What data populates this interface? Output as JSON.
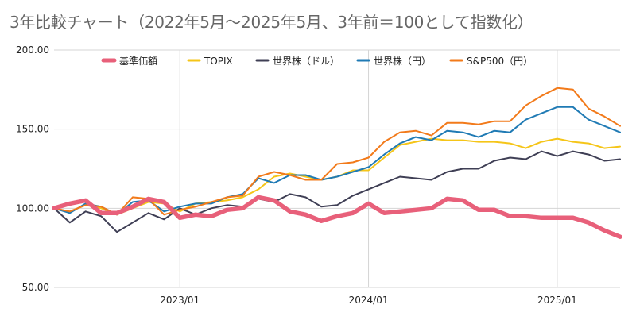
{
  "chart_data": {
    "type": "line",
    "title": "3年比較チャート（2022年5月～2025年5月、3年前＝100として指数化）",
    "ylim": [
      50,
      200
    ],
    "yticks": [
      "50.00",
      "100.00",
      "150.00",
      "200.00"
    ],
    "xticks": [
      "2023/01",
      "2024/01",
      "2025/01"
    ],
    "x": [
      "2022/05",
      "2022/06",
      "2022/07",
      "2022/08",
      "2022/09",
      "2022/10",
      "2022/11",
      "2022/12",
      "2023/01",
      "2023/02",
      "2023/03",
      "2023/04",
      "2023/05",
      "2023/06",
      "2023/07",
      "2023/08",
      "2023/09",
      "2023/10",
      "2023/11",
      "2023/12",
      "2024/01",
      "2024/02",
      "2024/03",
      "2024/04",
      "2024/05",
      "2024/06",
      "2024/07",
      "2024/08",
      "2024/09",
      "2024/10",
      "2024/11",
      "2024/12",
      "2025/01",
      "2025/02",
      "2025/03",
      "2025/04",
      "2025/05"
    ],
    "grid": true,
    "legend_position": "top",
    "series": [
      {
        "name": "基準価額",
        "color": "#e8607a",
        "values": [
          100,
          103,
          105,
          97,
          97,
          101,
          106,
          104,
          94,
          96,
          95,
          99,
          100,
          107,
          105,
          98,
          96,
          92,
          95,
          97,
          103,
          97,
          98,
          99,
          100,
          106,
          105,
          99,
          99,
          95,
          95,
          94,
          94,
          94,
          91,
          86,
          82
        ]
      },
      {
        "name": "TOPIX",
        "color": "#f5c518",
        "values": [
          100,
          98,
          102,
          100,
          96,
          100,
          104,
          103,
          98,
          103,
          104,
          105,
          107,
          112,
          120,
          122,
          120,
          118,
          120,
          124,
          124,
          132,
          140,
          142,
          144,
          143,
          143,
          142,
          142,
          141,
          138,
          142,
          144,
          142,
          141,
          138,
          139
        ]
      },
      {
        "name": "世界株（ドル）",
        "color": "#3f3f55",
        "values": [
          100,
          91,
          98,
          95,
          85,
          91,
          97,
          93,
          100,
          96,
          100,
          102,
          101,
          106,
          104,
          109,
          107,
          101,
          102,
          108,
          112,
          116,
          120,
          119,
          118,
          123,
          125,
          125,
          130,
          132,
          131,
          136,
          133,
          136,
          134,
          130,
          131
        ]
      },
      {
        "name": "世界株（円）",
        "color": "#1f7ab4",
        "values": [
          100,
          97,
          103,
          101,
          96,
          104,
          105,
          98,
          101,
          103,
          103,
          107,
          109,
          119,
          116,
          121,
          121,
          118,
          120,
          123,
          126,
          134,
          141,
          145,
          143,
          149,
          148,
          145,
          149,
          148,
          156,
          160,
          164,
          164,
          156,
          152,
          148
        ]
      },
      {
        "name": "S&P500（円）",
        "color": "#f27a1a",
        "values": [
          100,
          98,
          102,
          101,
          96,
          107,
          106,
          96,
          99,
          101,
          104,
          107,
          108,
          120,
          123,
          121,
          118,
          118,
          128,
          129,
          132,
          142,
          148,
          149,
          146,
          154,
          154,
          153,
          155,
          155,
          165,
          171,
          176,
          175,
          163,
          158,
          152
        ]
      }
    ]
  }
}
